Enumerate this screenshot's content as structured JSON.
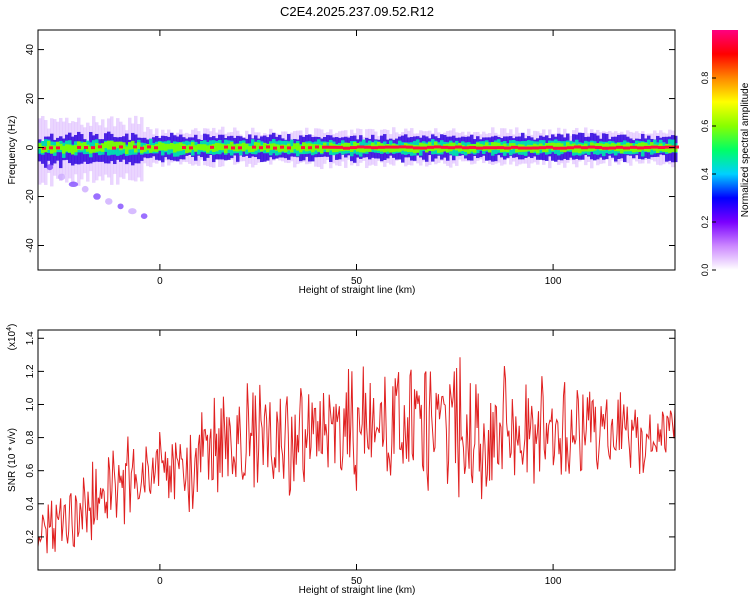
{
  "title": "C2E4.2025.237.09.52.R12",
  "chart_data": [
    {
      "type": "heatmap",
      "title": "C2E4.2025.237.09.52.R12",
      "xlabel": "Height of straight line (km)",
      "ylabel": "Frequency (Hz)",
      "xlim": [
        -31,
        131
      ],
      "ylim": [
        -50,
        48
      ],
      "xticks": [
        0,
        50,
        100
      ],
      "yticks": [
        -40,
        -20,
        0,
        20,
        40
      ],
      "grid": false,
      "band": {
        "center_hz": 0,
        "core_halfwidth_hz": 1.5,
        "green_halfwidth_hz": 2.5,
        "blue_halfwidth_hz": 4.5,
        "violet_halfwidth_hz": 6.5
      },
      "scatter_tail": [
        [
          -28,
          -8
        ],
        [
          -25,
          -12
        ],
        [
          -22,
          -15
        ],
        [
          -19,
          -17
        ],
        [
          -16,
          -20
        ],
        [
          -13,
          -22
        ],
        [
          -10,
          -24
        ],
        [
          -7,
          -26
        ],
        [
          -4,
          -28
        ]
      ],
      "colorbar": {
        "label": "Normalized spectral amplitude",
        "ticks": [
          0.0,
          0.2,
          0.4,
          0.6,
          0.8
        ],
        "tick_labels": [
          "0.0",
          "0.2",
          "0.4",
          "0.6",
          "0.8"
        ],
        "range": [
          0,
          1
        ],
        "stops": [
          "#ffffff",
          "#cc88ff",
          "#7a00ff",
          "#0000ff",
          "#00d0ff",
          "#00ff66",
          "#88ff00",
          "#ffff00",
          "#ff8800",
          "#ff0000",
          "#ff0080"
        ]
      }
    },
    {
      "type": "line",
      "xlabel": "Height of straight line (km)",
      "ylabel": "SNR (10 * v/v)",
      "scale_label": "(x10",
      "scale_exponent": "4",
      "scale_close": ")",
      "xlim": [
        -31,
        131
      ],
      "ylim": [
        0.0,
        1.45
      ],
      "xticks": [
        0,
        50,
        100
      ],
      "yticks": [
        0.2,
        0.4,
        0.6,
        0.8,
        1.0,
        1.2,
        1.4
      ],
      "ytick_labels": [
        "0.2",
        "0.4",
        "0.6",
        "0.8",
        "1.0",
        "1.2",
        "1.4"
      ],
      "color": "#e02020",
      "series": [
        {
          "x": [
            -31,
            -28,
            -25,
            -22,
            -19,
            -16,
            -13,
            -10,
            -7,
            -4,
            -1,
            2,
            5,
            8,
            11,
            14,
            17,
            20,
            23,
            26,
            29,
            32,
            35,
            38,
            41,
            44,
            47,
            50,
            53,
            56,
            59,
            62,
            65,
            68,
            71,
            74,
            77,
            80,
            83,
            86,
            89,
            92,
            95,
            98,
            101,
            104,
            107,
            110,
            113,
            116,
            119,
            122,
            125,
            128,
            131
          ],
          "values": [
            0.18,
            0.25,
            0.28,
            0.33,
            0.38,
            0.42,
            0.47,
            0.5,
            0.55,
            0.58,
            0.62,
            0.6,
            0.55,
            0.6,
            0.7,
            0.72,
            0.75,
            0.78,
            0.78,
            0.8,
            0.8,
            0.77,
            0.78,
            0.75,
            0.8,
            0.82,
            0.83,
            0.85,
            0.86,
            0.86,
            0.85,
            0.85,
            0.86,
            0.86,
            0.86,
            0.88,
            0.87,
            0.86,
            0.85,
            0.86,
            0.85,
            0.84,
            0.85,
            0.86,
            0.85,
            0.86,
            0.84,
            0.83,
            0.83,
            0.82,
            0.83,
            0.82,
            0.81,
            0.82,
            0.82
          ],
          "spread": [
            0.15,
            0.2,
            0.22,
            0.25,
            0.27,
            0.3,
            0.3,
            0.28,
            0.28,
            0.27,
            0.26,
            0.28,
            0.3,
            0.33,
            0.35,
            0.38,
            0.42,
            0.45,
            0.45,
            0.45,
            0.45,
            0.42,
            0.4,
            0.4,
            0.42,
            0.43,
            0.45,
            0.48,
            0.48,
            0.45,
            0.45,
            0.45,
            0.45,
            0.45,
            0.47,
            0.5,
            0.45,
            0.44,
            0.42,
            0.42,
            0.4,
            0.38,
            0.37,
            0.36,
            0.35,
            0.34,
            0.33,
            0.32,
            0.3,
            0.3,
            0.3,
            0.28,
            0.26,
            0.25,
            0.25
          ]
        }
      ]
    }
  ]
}
